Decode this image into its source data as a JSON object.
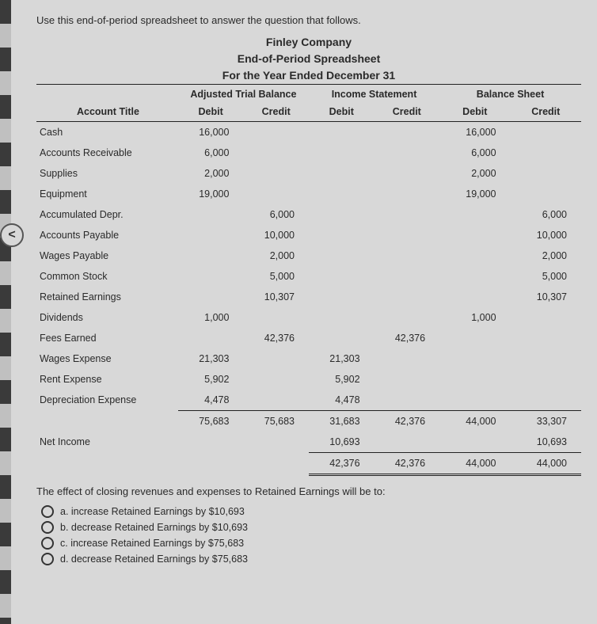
{
  "instruction": "Use this end-of-period spreadsheet to answer the question that follows.",
  "header": {
    "company": "Finley Company",
    "title": "End-of-Period Spreadsheet",
    "period": "For the Year Ended December 31"
  },
  "sections": {
    "atb": "Adjusted Trial Balance",
    "is": "Income Statement",
    "bs": "Balance Sheet"
  },
  "cols": {
    "acct": "Account Title",
    "debit": "Debit",
    "credit": "Credit"
  },
  "rows": [
    {
      "acct": "Cash",
      "atb_d": "16,000",
      "atb_c": "",
      "is_d": "",
      "is_c": "",
      "bs_d": "16,000",
      "bs_c": ""
    },
    {
      "acct": "Accounts Receivable",
      "atb_d": "6,000",
      "atb_c": "",
      "is_d": "",
      "is_c": "",
      "bs_d": "6,000",
      "bs_c": ""
    },
    {
      "acct": "Supplies",
      "atb_d": "2,000",
      "atb_c": "",
      "is_d": "",
      "is_c": "",
      "bs_d": "2,000",
      "bs_c": ""
    },
    {
      "acct": "Equipment",
      "atb_d": "19,000",
      "atb_c": "",
      "is_d": "",
      "is_c": "",
      "bs_d": "19,000",
      "bs_c": ""
    },
    {
      "acct": "Accumulated Depr.",
      "atb_d": "",
      "atb_c": "6,000",
      "is_d": "",
      "is_c": "",
      "bs_d": "",
      "bs_c": "6,000"
    },
    {
      "acct": "Accounts Payable",
      "atb_d": "",
      "atb_c": "10,000",
      "is_d": "",
      "is_c": "",
      "bs_d": "",
      "bs_c": "10,000"
    },
    {
      "acct": "Wages Payable",
      "atb_d": "",
      "atb_c": "2,000",
      "is_d": "",
      "is_c": "",
      "bs_d": "",
      "bs_c": "2,000"
    },
    {
      "acct": "Common Stock",
      "atb_d": "",
      "atb_c": "5,000",
      "is_d": "",
      "is_c": "",
      "bs_d": "",
      "bs_c": "5,000"
    },
    {
      "acct": "Retained Earnings",
      "atb_d": "",
      "atb_c": "10,307",
      "is_d": "",
      "is_c": "",
      "bs_d": "",
      "bs_c": "10,307"
    },
    {
      "acct": "Dividends",
      "atb_d": "1,000",
      "atb_c": "",
      "is_d": "",
      "is_c": "",
      "bs_d": "1,000",
      "bs_c": ""
    },
    {
      "acct": "Fees Earned",
      "atb_d": "",
      "atb_c": "42,376",
      "is_d": "",
      "is_c": "42,376",
      "bs_d": "",
      "bs_c": ""
    },
    {
      "acct": "Wages Expense",
      "atb_d": "21,303",
      "atb_c": "",
      "is_d": "21,303",
      "is_c": "",
      "bs_d": "",
      "bs_c": ""
    },
    {
      "acct": "Rent Expense",
      "atb_d": "5,902",
      "atb_c": "",
      "is_d": "5,902",
      "is_c": "",
      "bs_d": "",
      "bs_c": ""
    },
    {
      "acct": "Depreciation Expense",
      "atb_d": "4,478",
      "atb_c": "",
      "is_d": "4,478",
      "is_c": "",
      "bs_d": "",
      "bs_c": ""
    }
  ],
  "totals1": {
    "acct": "",
    "atb_d": "75,683",
    "atb_c": "75,683",
    "is_d": "31,683",
    "is_c": "42,376",
    "bs_d": "44,000",
    "bs_c": "33,307"
  },
  "netincome": {
    "acct": "Net Income",
    "is_d": "10,693",
    "bs_c": "10,693"
  },
  "totals2": {
    "is_d": "42,376",
    "is_c": "42,376",
    "bs_d": "44,000",
    "bs_c": "44,000"
  },
  "closing": "The effect of closing revenues and expenses to Retained Earnings will be to:",
  "options": [
    {
      "letter": "a.",
      "text": "increase Retained Earnings by $10,693"
    },
    {
      "letter": "b.",
      "text": "decrease Retained Earnings by $10,693"
    },
    {
      "letter": "c.",
      "text": "increase Retained Earnings by $75,683"
    },
    {
      "letter": "d.",
      "text": "decrease Retained Earnings by $75,683"
    }
  ],
  "styling": {
    "background_color": "#d8d8d8",
    "text_color": "#2a2a2a",
    "border_color": "#222222",
    "font_family": "Arial",
    "header_fontsize": 14,
    "body_fontsize": 13,
    "table_fontsize": 12.5,
    "column_widths_pct": [
      26,
      12,
      12,
      12,
      12,
      13,
      13
    ]
  }
}
